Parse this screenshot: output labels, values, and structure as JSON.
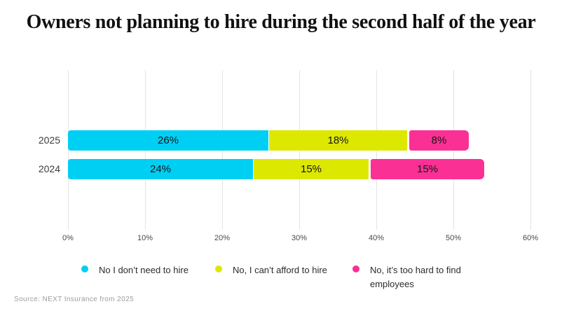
{
  "title": "Owners not planning to hire during the second half of the year",
  "source": "Source: NEXT Insurance from 2025",
  "chart_data": {
    "type": "bar",
    "stacked": true,
    "orientation": "horizontal",
    "title": "Owners not planning to hire during the second half of the year",
    "categories": [
      "2025",
      "2024"
    ],
    "series": [
      {
        "name": "No I don’t need to hire",
        "color": "#00cff4",
        "values": [
          26,
          24
        ]
      },
      {
        "name": "No, I can’t afford to hire",
        "color": "#dde801",
        "values": [
          18,
          15
        ]
      },
      {
        "name": "No, it’s too hard to find employees",
        "color": "#fb3095",
        "values": [
          8,
          15
        ]
      }
    ],
    "value_labels": [
      [
        "26%",
        "18%",
        "8%"
      ],
      [
        "24%",
        "15%",
        "15%"
      ]
    ],
    "x_ticks": [
      "0%",
      "10%",
      "20%",
      "30%",
      "40%",
      "50%",
      "60%"
    ],
    "xlim": [
      0,
      60
    ],
    "grid": true,
    "grid_color": "#e4e4e4",
    "legend_position": "bottom"
  }
}
